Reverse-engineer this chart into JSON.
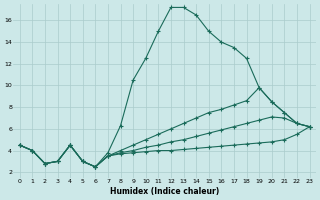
{
  "background_color": "#cce8e8",
  "grid_color": "#aacccc",
  "line_color": "#1a6b5a",
  "xlabel": "Humidex (Indice chaleur)",
  "xlim": [
    -0.5,
    23.5
  ],
  "ylim": [
    1.5,
    17.5
  ],
  "yticks": [
    2,
    4,
    6,
    8,
    10,
    12,
    14,
    16
  ],
  "xticks": [
    0,
    1,
    2,
    3,
    4,
    5,
    6,
    7,
    8,
    9,
    10,
    11,
    12,
    13,
    14,
    15,
    16,
    17,
    18,
    19,
    20,
    21,
    22,
    23
  ],
  "line1_x": [
    0,
    1,
    2,
    3,
    4,
    5,
    6,
    7,
    8,
    9,
    10,
    11,
    12,
    13,
    14,
    15,
    16,
    17,
    18,
    19,
    20,
    21,
    22,
    23
  ],
  "line1_y": [
    4.5,
    4.0,
    2.8,
    3.0,
    4.5,
    3.0,
    2.5,
    3.8,
    6.3,
    10.5,
    12.5,
    15.0,
    17.2,
    17.2,
    16.5,
    15.0,
    14.0,
    13.5,
    12.5,
    9.8,
    8.5,
    7.5,
    6.5,
    6.2
  ],
  "line2_x": [
    0,
    1,
    2,
    3,
    4,
    5,
    6,
    7,
    8,
    9,
    10,
    11,
    12,
    13,
    14,
    15,
    16,
    17,
    18,
    19,
    20,
    21,
    22,
    23
  ],
  "line2_y": [
    4.5,
    4.0,
    2.8,
    3.0,
    4.5,
    3.0,
    2.5,
    3.5,
    4.0,
    4.5,
    5.0,
    5.5,
    6.0,
    6.5,
    7.0,
    7.5,
    7.8,
    8.2,
    8.6,
    9.8,
    8.5,
    7.5,
    6.5,
    6.2
  ],
  "line3_x": [
    0,
    1,
    2,
    3,
    4,
    5,
    6,
    7,
    8,
    9,
    10,
    11,
    12,
    13,
    14,
    15,
    16,
    17,
    18,
    19,
    20,
    21,
    22,
    23
  ],
  "line3_y": [
    4.5,
    4.0,
    2.8,
    3.0,
    4.5,
    3.0,
    2.5,
    3.5,
    3.8,
    4.0,
    4.3,
    4.5,
    4.8,
    5.0,
    5.3,
    5.6,
    5.9,
    6.2,
    6.5,
    6.8,
    7.1,
    7.0,
    6.5,
    6.2
  ],
  "line4_x": [
    0,
    1,
    2,
    3,
    4,
    5,
    6,
    7,
    8,
    9,
    10,
    11,
    12,
    13,
    14,
    15,
    16,
    17,
    18,
    19,
    20,
    21,
    22,
    23
  ],
  "line4_y": [
    4.5,
    4.0,
    2.8,
    3.0,
    4.5,
    3.0,
    2.5,
    3.5,
    3.7,
    3.8,
    3.9,
    4.0,
    4.0,
    4.1,
    4.2,
    4.3,
    4.4,
    4.5,
    4.6,
    4.7,
    4.8,
    5.0,
    5.5,
    6.2
  ]
}
